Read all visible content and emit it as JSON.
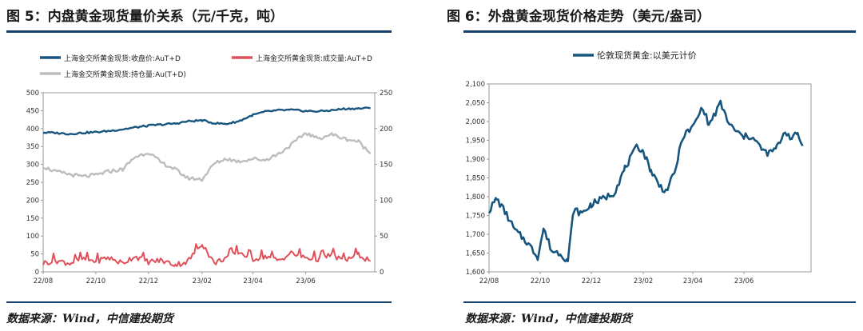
{
  "left": {
    "title": "图 5：内盘黄金现货量价关系（元/千克，吨）",
    "source": "数据来源：Wind，中信建投期货"
  },
  "right": {
    "title": "图 6：外盘黄金现货价格走势（美元/盎司）",
    "source": "数据来源：Wind，中信建投期货"
  },
  "colors": {
    "navy": "#17557f",
    "red": "#e0505a",
    "gray": "#bdbdbd",
    "rule": "#17406d"
  },
  "chart_data": [
    {
      "type": "line",
      "title": "",
      "legend_position": "top",
      "x_tick_labels": [
        "22/08",
        "22/10",
        "22/12",
        "23/02",
        "23/04",
        "23/06"
      ],
      "xlim": [
        "2022-08",
        "2023-08"
      ],
      "ylim": [
        0,
        500
      ],
      "y_ticks": [
        0,
        50,
        100,
        150,
        200,
        250,
        300,
        350,
        400,
        450,
        500
      ],
      "y2lim": [
        0,
        250
      ],
      "y2_ticks": [
        0,
        50,
        100,
        150,
        200,
        250
      ],
      "series": [
        {
          "name": "上海金交所黄金现货:收盘价:AuT+D",
          "axis": "left",
          "color": "#17557f",
          "points": [
            [
              "2022-08-01",
              389
            ],
            [
              "2022-08-15",
              388
            ],
            [
              "2022-09-01",
              385
            ],
            [
              "2022-09-15",
              388
            ],
            [
              "2022-10-01",
              390
            ],
            [
              "2022-10-15",
              393
            ],
            [
              "2022-11-01",
              398
            ],
            [
              "2022-11-15",
              403
            ],
            [
              "2022-12-01",
              408
            ],
            [
              "2022-12-15",
              411
            ],
            [
              "2023-01-01",
              414
            ],
            [
              "2023-01-15",
              420
            ],
            [
              "2023-02-01",
              423
            ],
            [
              "2023-02-15",
              415
            ],
            [
              "2023-03-01",
              413
            ],
            [
              "2023-03-15",
              420
            ],
            [
              "2023-04-01",
              438
            ],
            [
              "2023-04-15",
              447
            ],
            [
              "2023-05-01",
              451
            ],
            [
              "2023-05-15",
              452
            ],
            [
              "2023-06-01",
              449
            ],
            [
              "2023-06-15",
              448
            ],
            [
              "2023-07-01",
              451
            ],
            [
              "2023-07-15",
              455
            ],
            [
              "2023-08-01",
              456
            ],
            [
              "2023-08-15",
              457
            ]
          ]
        },
        {
          "name": "上海金交所黄金现货:成交量:AuT+D",
          "axis": "right",
          "color": "#e0505a",
          "points": [
            [
              "2022-08-01",
              12
            ],
            [
              "2022-08-15",
              16
            ],
            [
              "2022-09-01",
              12
            ],
            [
              "2022-09-15",
              18
            ],
            [
              "2022-10-01",
              15
            ],
            [
              "2022-10-15",
              20
            ],
            [
              "2022-11-01",
              12
            ],
            [
              "2022-11-15",
              22
            ],
            [
              "2022-12-01",
              14
            ],
            [
              "2022-12-15",
              16
            ],
            [
              "2023-01-01",
              10
            ],
            [
              "2023-01-15",
              14
            ],
            [
              "2023-02-01",
              40
            ],
            [
              "2023-02-15",
              12
            ],
            [
              "2023-03-01",
              20
            ],
            [
              "2023-03-15",
              28
            ],
            [
              "2023-04-01",
              18
            ],
            [
              "2023-04-15",
              22
            ],
            [
              "2023-05-01",
              16
            ],
            [
              "2023-05-15",
              26
            ],
            [
              "2023-06-01",
              20
            ],
            [
              "2023-06-15",
              18
            ],
            [
              "2023-07-01",
              24
            ],
            [
              "2023-07-15",
              16
            ],
            [
              "2023-08-01",
              24
            ],
            [
              "2023-08-15",
              15
            ]
          ]
        },
        {
          "name": "上海金交所黄金现货:持仓量:Au(T+D)",
          "axis": "right",
          "color": "#bdbdbd",
          "points": [
            [
              "2022-08-01",
              147
            ],
            [
              "2022-08-15",
              140
            ],
            [
              "2022-09-01",
              136
            ],
            [
              "2022-09-15",
              133
            ],
            [
              "2022-10-01",
              135
            ],
            [
              "2022-10-15",
              140
            ],
            [
              "2022-11-01",
              143
            ],
            [
              "2022-11-15",
              160
            ],
            [
              "2022-12-01",
              167
            ],
            [
              "2022-12-15",
              153
            ],
            [
              "2023-01-01",
              143
            ],
            [
              "2023-01-15",
              131
            ],
            [
              "2023-02-01",
              129
            ],
            [
              "2023-02-15",
              151
            ],
            [
              "2023-03-01",
              158
            ],
            [
              "2023-03-15",
              154
            ],
            [
              "2023-04-01",
              158
            ],
            [
              "2023-04-15",
              156
            ],
            [
              "2023-05-01",
              165
            ],
            [
              "2023-05-15",
              177
            ],
            [
              "2023-06-01",
              194
            ],
            [
              "2023-06-15",
              186
            ],
            [
              "2023-07-01",
              192
            ],
            [
              "2023-07-15",
              186
            ],
            [
              "2023-08-01",
              182
            ],
            [
              "2023-08-15",
              165
            ]
          ]
        }
      ]
    },
    {
      "type": "line",
      "title": "",
      "legend_position": "top",
      "x_tick_labels": [
        "22/08",
        "22/10",
        "22/12",
        "23/02",
        "23/04",
        "23/06"
      ],
      "xlim": [
        "2022-08",
        "2023-08"
      ],
      "ylim": [
        1600,
        2100
      ],
      "y_ticks": [
        "1,600",
        "1,650",
        "1,700",
        "1,750",
        "1,800",
        "1,850",
        "1,900",
        "1,950",
        "2,000",
        "2,050",
        "2,100"
      ],
      "series": [
        {
          "name": "伦敦现货黄金:以美元计价",
          "color": "#17557f",
          "points": [
            [
              "2022-08-01",
              1763
            ],
            [
              "2022-08-10",
              1795
            ],
            [
              "2022-08-20",
              1760
            ],
            [
              "2022-09-01",
              1710
            ],
            [
              "2022-09-15",
              1680
            ],
            [
              "2022-09-28",
              1640
            ],
            [
              "2022-10-05",
              1715
            ],
            [
              "2022-10-15",
              1655
            ],
            [
              "2022-10-25",
              1650
            ],
            [
              "2022-11-03",
              1630
            ],
            [
              "2022-11-10",
              1765
            ],
            [
              "2022-11-20",
              1755
            ],
            [
              "2022-12-01",
              1780
            ],
            [
              "2022-12-15",
              1795
            ],
            [
              "2022-12-28",
              1810
            ],
            [
              "2023-01-10",
              1875
            ],
            [
              "2023-01-25",
              1935
            ],
            [
              "2023-02-01",
              1920
            ],
            [
              "2023-02-10",
              1870
            ],
            [
              "2023-02-20",
              1830
            ],
            [
              "2023-02-28",
              1815
            ],
            [
              "2023-03-10",
              1860
            ],
            [
              "2023-03-20",
              1960
            ],
            [
              "2023-04-01",
              1985
            ],
            [
              "2023-04-13",
              2040
            ],
            [
              "2023-04-20",
              1990
            ],
            [
              "2023-05-04",
              2048
            ],
            [
              "2023-05-15",
              1990
            ],
            [
              "2023-05-30",
              1960
            ],
            [
              "2023-06-10",
              1960
            ],
            [
              "2023-06-25",
              1920
            ],
            [
              "2023-07-01",
              1915
            ],
            [
              "2023-07-10",
              1930
            ],
            [
              "2023-07-20",
              1975
            ],
            [
              "2023-07-28",
              1955
            ],
            [
              "2023-08-04",
              1968
            ],
            [
              "2023-08-10",
              1935
            ]
          ]
        }
      ]
    }
  ]
}
